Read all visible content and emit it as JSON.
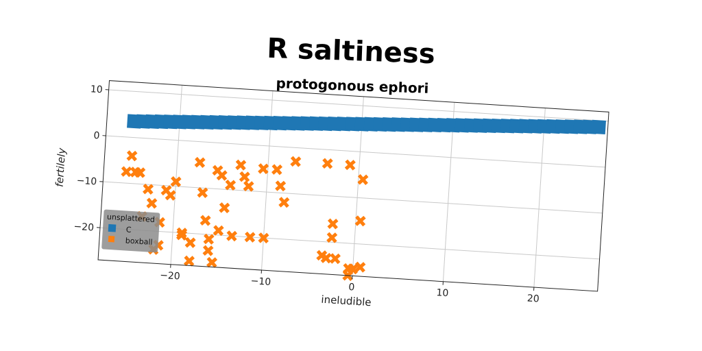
{
  "chart_data": {
    "type": "scatter",
    "title": "R saltiness",
    "subtitle": "protogonous ephori",
    "xlabel": "ineludible",
    "ylabel": "fertilely",
    "xlim": [
      -28,
      27
    ],
    "ylim": [
      -27,
      12
    ],
    "xticks": [
      -20,
      -10,
      0,
      10,
      20
    ],
    "yticks": [
      -20,
      -10,
      0,
      10
    ],
    "xtick_labels": [
      "−20",
      "−10",
      "0",
      "10",
      "20"
    ],
    "ytick_labels": [
      "−20",
      "−10",
      "0",
      "10"
    ],
    "grid": true,
    "legend": {
      "title": "unsplattered",
      "placement": "lower-left",
      "entries": [
        "C",
        "boxball"
      ]
    },
    "series": [
      {
        "name": "C",
        "marker": "square",
        "color": "#1f77b4",
        "x": [
          -25,
          -24,
          -23,
          -22,
          -21,
          -20,
          -19,
          -18,
          -17,
          -16,
          -15,
          -14,
          -13,
          -12,
          -11,
          -10,
          -9,
          -8,
          -7,
          -6,
          -5,
          -4,
          -3,
          -2,
          -1,
          0,
          1,
          2,
          3,
          4,
          5,
          6,
          7,
          8,
          9,
          10,
          11,
          12,
          13,
          14,
          15,
          16,
          17,
          18,
          19,
          20,
          21,
          22,
          23,
          24,
          25,
          26
        ],
        "y": [
          3.5,
          3.6,
          3.7,
          3.8,
          3.9,
          4.0,
          4.1,
          4.2,
          4.3,
          4.4,
          4.5,
          4.6,
          4.7,
          4.8,
          4.9,
          5.0,
          5.1,
          5.2,
          5.3,
          5.4,
          5.5,
          5.6,
          5.7,
          5.8,
          5.9,
          6.0,
          6.1,
          6.2,
          6.3,
          6.4,
          6.5,
          6.6,
          6.7,
          6.8,
          6.9,
          7.0,
          7.1,
          7.2,
          7.3,
          7.4,
          7.5,
          7.6,
          7.7,
          7.8,
          7.9,
          8.0,
          8.1,
          8.2,
          8.3,
          8.4,
          8.5,
          8.6
        ]
      },
      {
        "name": "boxball",
        "marker": "x",
        "color": "#ff7f0e",
        "x": [
          -25,
          -25.5,
          -24.5,
          -24,
          -23,
          -23.5,
          -22.5,
          -22,
          -21.5,
          -21.5,
          -21,
          -20.5,
          -20,
          -19,
          -19,
          -18,
          -18,
          -17.5,
          -17,
          -16.5,
          -16,
          -16,
          -15.5,
          -15.5,
          -15,
          -15,
          -14.5,
          -14,
          -13.5,
          -13,
          -12.5,
          -12,
          -11.5,
          -10.5,
          -10,
          -9,
          -8.5,
          -8,
          -7,
          -3.5,
          -3.5,
          -3,
          -2.5,
          -2.5,
          -2,
          -1,
          -0.5,
          -0.5,
          0,
          0.5,
          0.5,
          0.8
        ],
        "y": [
          -4,
          -7.5,
          -7.5,
          -7.5,
          -11,
          -17,
          -14,
          -24,
          -18,
          -23,
          -11,
          -12,
          -9,
          -20,
          -20.5,
          -22,
          -26,
          -4.5,
          -11,
          -17,
          -21,
          -23.5,
          -26,
          -6,
          -7,
          -19,
          -14,
          -9,
          -20,
          -4.5,
          -7,
          -9,
          -20,
          -5,
          -20,
          -5,
          -8.5,
          -12,
          -3,
          -23,
          -3,
          -23.5,
          -16,
          -19,
          -23.5,
          -3,
          -25.5,
          -27,
          -25.5,
          -6,
          -15,
          -25
        ]
      }
    ]
  }
}
